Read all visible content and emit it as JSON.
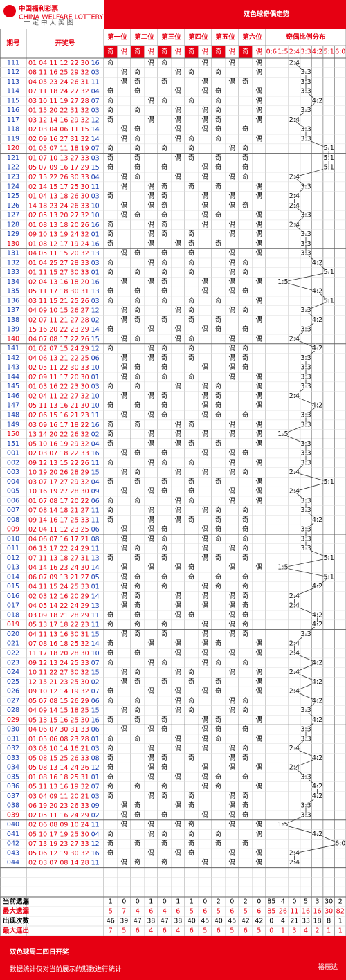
{
  "header": {
    "logo": "中国福利彩票",
    "logo_en": "CHINA WELFARE LOTTERY",
    "slogan": "一 定 中 大 奖 图",
    "title": "双色球奇偶走势"
  },
  "columns": {
    "period": "期号",
    "numbers": "开奖号",
    "positions": [
      "第一位",
      "第二位",
      "第三位",
      "第四位",
      "第五位",
      "第六位"
    ],
    "sub": [
      "奇",
      "偶"
    ],
    "ratio_title": "奇偶比例分布",
    "ratios": [
      "0:6",
      "1:5",
      "2:4",
      "3:3",
      "4:2",
      "5:1",
      "6:0"
    ]
  },
  "rows": [
    {
      "period": "111",
      "red": "01 04 11 12 22 30",
      "blue": "16",
      "parity": "奇偶奇偶偶偶",
      "ratio": "2:4"
    },
    {
      "period": "112",
      "red": "08 11 16 25 29 32",
      "blue": "03",
      "parity": "偶奇偶奇奇偶",
      "ratio": "3:3"
    },
    {
      "period": "113",
      "red": "04 05 23 24 26 31",
      "blue": "11",
      "parity": "偶奇奇偶偶奇",
      "ratio": "3:3"
    },
    {
      "period": "114",
      "red": "07 11 18 24 27 32",
      "blue": "04",
      "parity": "奇奇偶偶奇偶",
      "ratio": "3:3"
    },
    {
      "period": "115",
      "red": "03 10 11 19 27 28",
      "blue": "07",
      "parity": "奇偶奇奇奇偶",
      "ratio": "4:2"
    },
    {
      "period": "116",
      "red": "01 15 20 22 31 32",
      "blue": "03",
      "parity": "奇奇偶偶奇偶",
      "ratio": "3:3"
    },
    {
      "period": "117",
      "red": "03 12 14 16 29 32",
      "blue": "12",
      "parity": "奇偶偶偶奇偶",
      "ratio": "2:4"
    },
    {
      "period": "118",
      "red": "02 03 04 06 11 15",
      "blue": "14",
      "parity": "偶奇偶偶奇奇",
      "ratio": "3:3"
    },
    {
      "period": "119",
      "red": "02 09 16 27 31 32",
      "blue": "14",
      "parity": "偶奇偶奇奇偶",
      "ratio": "3:3"
    },
    {
      "period": "120",
      "red": "01 05 07 11 18 19",
      "blue": "07",
      "parity": "奇奇奇奇偶奇",
      "ratio": "5:1",
      "color": "#e60012"
    },
    {
      "period": "121",
      "red": "01 07 10 13 27 33",
      "blue": "03",
      "parity": "奇奇偶奇奇奇",
      "ratio": "5:1"
    },
    {
      "period": "122",
      "red": "05 07 09 16 17 29",
      "blue": "15",
      "parity": "奇奇奇偶奇奇",
      "ratio": "5:1"
    },
    {
      "period": "123",
      "red": "02 15 22 26 30 33",
      "blue": "04",
      "parity": "偶奇偶偶偶奇",
      "ratio": "2:4"
    },
    {
      "period": "124",
      "red": "02 14 15 17 25 30",
      "blue": "11",
      "parity": "偶偶奇奇奇偶",
      "ratio": "3:3"
    },
    {
      "period": "125",
      "red": "01 04 13 18 26 30",
      "blue": "03",
      "parity": "奇偶奇偶偶偶",
      "ratio": "2:4"
    },
    {
      "period": "126",
      "red": "14 18 23 24 26 33",
      "blue": "10",
      "parity": "偶偶奇偶偶奇",
      "ratio": "2:4"
    },
    {
      "period": "127",
      "red": "02 05 13 20 27 32",
      "blue": "10",
      "parity": "偶奇奇偶奇偶",
      "ratio": "3:3"
    },
    {
      "period": "128",
      "red": "01 08 13 18 20 26",
      "blue": "16",
      "parity": "奇偶奇偶偶偶",
      "ratio": "2:4"
    },
    {
      "period": "129",
      "red": "09 10 13 19 24 32",
      "blue": "01",
      "parity": "奇偶奇奇偶偶",
      "ratio": "3:3"
    },
    {
      "period": "130",
      "red": "01 08 12 17 19 24",
      "blue": "16",
      "parity": "奇偶偶奇奇偶",
      "ratio": "3:3",
      "color": "#e60012"
    },
    {
      "period": "131",
      "red": "04 05 11 15 20 32",
      "blue": "13",
      "parity": "偶奇奇奇偶偶",
      "ratio": "3:3"
    },
    {
      "period": "132",
      "red": "01 04 25 27 28 33",
      "blue": "03",
      "parity": "奇偶奇奇偶奇",
      "ratio": "4:2"
    },
    {
      "period": "133",
      "red": "01 11 15 27 30 33",
      "blue": "01",
      "parity": "奇奇奇奇偶奇",
      "ratio": "5:1"
    },
    {
      "period": "134",
      "red": "02 04 13 16 18 20",
      "blue": "16",
      "parity": "偶偶奇偶偶偶",
      "ratio": "1:5"
    },
    {
      "period": "135",
      "red": "05 11 17 18 30 31",
      "blue": "13",
      "parity": "奇奇奇偶偶奇",
      "ratio": "4:2"
    },
    {
      "period": "136",
      "red": "03 11 15 21 25 26",
      "blue": "03",
      "parity": "奇奇奇奇奇偶",
      "ratio": "5:1"
    },
    {
      "period": "137",
      "red": "04 09 10 15 26 27",
      "blue": "12",
      "parity": "偶奇偶奇偶奇",
      "ratio": "3:3"
    },
    {
      "period": "138",
      "red": "02 07 11 21 27 28",
      "blue": "02",
      "parity": "偶奇奇奇奇偶",
      "ratio": "4:2"
    },
    {
      "period": "139",
      "red": "15 16 20 22 23 29",
      "blue": "14",
      "parity": "奇偶偶偶奇奇",
      "ratio": "3:3"
    },
    {
      "period": "140",
      "red": "04 07 08 17 22 26",
      "blue": "15",
      "parity": "偶奇偶奇偶偶",
      "ratio": "2:4",
      "color": "#e60012"
    },
    {
      "period": "141",
      "red": "01 02 07 15 24 29",
      "blue": "12",
      "parity": "奇偶奇奇偶奇",
      "ratio": "4:2"
    },
    {
      "period": "142",
      "red": "04 06 13 21 22 25",
      "blue": "06",
      "parity": "偶偶奇奇偶奇",
      "ratio": "3:3"
    },
    {
      "period": "143",
      "red": "02 05 11 22 30 33",
      "blue": "10",
      "parity": "偶奇奇偶偶奇",
      "ratio": "3:3"
    },
    {
      "period": "144",
      "red": "02 09 11 17 20 30",
      "blue": "01",
      "parity": "偶奇奇奇偶偶",
      "ratio": "3:3"
    },
    {
      "period": "145",
      "red": "01 03 16 22 23 30",
      "blue": "03",
      "parity": "奇奇偶偶奇偶",
      "ratio": "3:3"
    },
    {
      "period": "146",
      "red": "02 04 11 22 27 32",
      "blue": "10",
      "parity": "偶偶奇偶奇偶",
      "ratio": "2:4"
    },
    {
      "period": "147",
      "red": "05 11 13 16 21 30",
      "blue": "10",
      "parity": "奇奇奇偶奇偶",
      "ratio": "4:2"
    },
    {
      "period": "148",
      "red": "02 06 15 16 21 23",
      "blue": "11",
      "parity": "偶偶奇偶奇奇",
      "ratio": "3:3"
    },
    {
      "period": "149",
      "red": "03 09 16 17 18 22",
      "blue": "16",
      "parity": "奇奇偶奇偶偶",
      "ratio": "3:3"
    },
    {
      "period": "150",
      "red": "13 14 20 22 26 32",
      "blue": "02",
      "parity": "奇偶偶偶偶偶",
      "ratio": "1:5",
      "color": "#e60012"
    },
    {
      "period": "151",
      "red": "05 10 16 19 29 32",
      "blue": "04",
      "parity": "奇偶偶奇奇偶",
      "ratio": "3:3"
    },
    {
      "period": "001",
      "red": "02 03 07 18 22 33",
      "blue": "16",
      "parity": "偶奇奇偶偶奇",
      "ratio": "3:3"
    },
    {
      "period": "002",
      "red": "09 12 13 15 22 26",
      "blue": "11",
      "parity": "奇偶奇奇偶偶",
      "ratio": "3:3"
    },
    {
      "period": "003",
      "red": "10 19 20 26 28 29",
      "blue": "15",
      "parity": "偶奇偶偶偶奇",
      "ratio": "2:4"
    },
    {
      "period": "004",
      "red": "03 07 17 27 29 32",
      "blue": "04",
      "parity": "奇奇奇奇奇偶",
      "ratio": "5:1"
    },
    {
      "period": "005",
      "red": "10 16 19 27 28 30",
      "blue": "09",
      "parity": "偶偶奇奇偶偶",
      "ratio": "2:4"
    },
    {
      "period": "006",
      "red": "01 07 08 17 20 22",
      "blue": "06",
      "parity": "奇奇偶奇偶偶",
      "ratio": "3:3"
    },
    {
      "period": "007",
      "red": "07 08 14 18 21 27",
      "blue": "11",
      "parity": "奇偶偶偶奇奇",
      "ratio": "3:3"
    },
    {
      "period": "008",
      "red": "09 14 16 17 25 33",
      "blue": "11",
      "parity": "奇偶偶奇奇奇",
      "ratio": "4:2"
    },
    {
      "period": "009",
      "red": "02 04 11 12 23 25",
      "blue": "06",
      "parity": "偶偶奇偶奇奇",
      "ratio": "3:3",
      "color": "#e60012"
    },
    {
      "period": "010",
      "red": "04 06 07 16 17 21",
      "blue": "08",
      "parity": "偶偶奇偶奇奇",
      "ratio": "3:3"
    },
    {
      "period": "011",
      "red": "06 13 17 22 24 29",
      "blue": "11",
      "parity": "偶奇奇偶偶奇",
      "ratio": "3:3"
    },
    {
      "period": "012",
      "red": "07 11 13 18 27 31",
      "blue": "13",
      "parity": "奇奇奇偶奇奇",
      "ratio": "5:1"
    },
    {
      "period": "013",
      "red": "04 14 16 23 24 30",
      "blue": "14",
      "parity": "偶偶偶奇偶偶",
      "ratio": "1:5"
    },
    {
      "period": "014",
      "red": "06 07 09 13 21 27",
      "blue": "05",
      "parity": "偶奇奇奇奇奇",
      "ratio": "5:1"
    },
    {
      "period": "015",
      "red": "04 11 15 24 25 33",
      "blue": "01",
      "parity": "偶奇奇偶奇奇",
      "ratio": "4:2"
    },
    {
      "period": "016",
      "red": "02 03 12 16 20 29",
      "blue": "14",
      "parity": "偶奇偶偶偶奇",
      "ratio": "2:4"
    },
    {
      "period": "017",
      "red": "04 05 14 22 24 29",
      "blue": "13",
      "parity": "偶奇偶偶偶奇",
      "ratio": "2:4"
    },
    {
      "period": "018",
      "red": "03 09 18 21 28 29",
      "blue": "11",
      "parity": "奇奇偶奇偶奇",
      "ratio": "4:2"
    },
    {
      "period": "019",
      "red": "05 13 17 18 22 23",
      "blue": "11",
      "parity": "奇奇奇偶偶奇",
      "ratio": "4:2",
      "color": "#e60012"
    },
    {
      "period": "020",
      "red": "04 11 13 16 30 31",
      "blue": "15",
      "parity": "偶奇奇偶偶奇",
      "ratio": "3:3"
    },
    {
      "period": "021",
      "red": "07 08 16 18 25 32",
      "blue": "14",
      "parity": "奇偶偶偶奇偶",
      "ratio": "2:4"
    },
    {
      "period": "022",
      "red": "11 17 18 20 28 30",
      "blue": "10",
      "parity": "奇奇偶偶偶偶",
      "ratio": "2:4"
    },
    {
      "period": "023",
      "red": "09 12 13 24 25 33",
      "blue": "07",
      "parity": "奇偶奇偶奇奇",
      "ratio": "4:2"
    },
    {
      "period": "024",
      "red": "10 11 22 27 30 32",
      "blue": "15",
      "parity": "偶奇偶奇偶偶",
      "ratio": "2:4"
    },
    {
      "period": "025",
      "red": "12 15 21 23 25 30",
      "blue": "02",
      "parity": "偶奇奇奇奇偶",
      "ratio": "4:2"
    },
    {
      "period": "026",
      "red": "09 10 12 14 19 32",
      "blue": "07",
      "parity": "奇偶偶偶奇偶",
      "ratio": "2:4"
    },
    {
      "period": "027",
      "red": "05 07 08 15 26 29",
      "blue": "06",
      "parity": "奇奇偶奇偶奇",
      "ratio": "4:2"
    },
    {
      "period": "028",
      "red": "04 09 14 15 18 25",
      "blue": "15",
      "parity": "偶奇偶奇偶奇",
      "ratio": "3:3"
    },
    {
      "period": "029",
      "red": "05 13 15 16 25 30",
      "blue": "16",
      "parity": "奇奇奇偶奇偶",
      "ratio": "4:2",
      "color": "#e60012"
    },
    {
      "period": "030",
      "red": "04 06 07 30 31 33",
      "blue": "06",
      "parity": "偶偶奇偶奇奇",
      "ratio": "3:3"
    },
    {
      "period": "031",
      "red": "01 05 06 08 23 28",
      "blue": "01",
      "parity": "奇奇偶偶奇偶",
      "ratio": "3:3"
    },
    {
      "period": "032",
      "red": "03 08 10 14 16 21",
      "blue": "03",
      "parity": "奇偶偶偶偶奇",
      "ratio": "2:4"
    },
    {
      "period": "033",
      "red": "05 08 15 25 26 33",
      "blue": "08",
      "parity": "奇偶奇奇偶奇",
      "ratio": "4:2"
    },
    {
      "period": "034",
      "red": "05 08 13 14 24 26",
      "blue": "12",
      "parity": "奇偶奇偶偶偶",
      "ratio": "2:4"
    },
    {
      "period": "035",
      "red": "01 08 16 18 25 31",
      "blue": "01",
      "parity": "奇偶偶偶奇奇",
      "ratio": "3:3"
    },
    {
      "period": "036",
      "red": "05 11 13 16 19 32",
      "blue": "07",
      "parity": "奇奇奇偶奇偶",
      "ratio": "4:2"
    },
    {
      "period": "037",
      "red": "03 04 09 11 20 21",
      "blue": "03",
      "parity": "奇偶奇奇偶奇",
      "ratio": "4:2"
    },
    {
      "period": "038",
      "red": "06 19 20 23 26 33",
      "blue": "09",
      "parity": "偶奇偶奇偶奇",
      "ratio": "3:3"
    },
    {
      "period": "039",
      "red": "02 05 11 16 24 29",
      "blue": "02",
      "parity": "偶奇奇偶偶奇",
      "ratio": "3:3",
      "color": "#e60012"
    },
    {
      "period": "040",
      "red": "02 06 08 09 10 24",
      "blue": "11",
      "parity": "偶偶偶奇偶偶",
      "ratio": "1:5"
    },
    {
      "period": "041",
      "red": "05 10 17 19 25 30",
      "blue": "04",
      "parity": "奇偶奇奇奇偶",
      "ratio": "4:2"
    },
    {
      "period": "042",
      "red": "07 13 19 23 27 33",
      "blue": "12",
      "parity": "奇奇奇奇奇奇",
      "ratio": "6:0"
    },
    {
      "period": "043",
      "red": "05 06 12 19 30 32",
      "blue": "16",
      "parity": "奇偶偶奇偶偶",
      "ratio": "2:4"
    },
    {
      "period": "044",
      "red": "02 03 07 08 14 28",
      "blue": "11",
      "parity": "偶奇奇偶偶偶",
      "ratio": "2:4"
    }
  ],
  "stats": [
    {
      "label": "当前遗漏",
      "color": "#000000",
      "values": [
        1,
        0,
        0,
        1,
        0,
        1,
        1,
        0,
        2,
        0,
        2,
        0,
        85,
        4,
        0,
        5,
        3,
        30,
        2
      ]
    },
    {
      "label": "最大遗漏",
      "color": "#e60012",
      "values": [
        5,
        7,
        4,
        6,
        4,
        6,
        5,
        6,
        5,
        6,
        5,
        6,
        85,
        26,
        11,
        16,
        16,
        30,
        82
      ]
    },
    {
      "label": "出现次数",
      "color": "#000000",
      "values": [
        46,
        39,
        47,
        38,
        47,
        38,
        40,
        45,
        40,
        45,
        42,
        42,
        0,
        4,
        21,
        33,
        18,
        8,
        1
      ]
    },
    {
      "label": "最大连出",
      "color": "#e60012",
      "values": [
        7,
        5,
        6,
        4,
        6,
        4,
        6,
        5,
        6,
        5,
        6,
        5,
        0,
        1,
        3,
        4,
        2,
        1,
        1
      ]
    }
  ],
  "footer": {
    "title": "双色球周二四日开奖",
    "note": "数据统计仅对当前展示的期数进行统计",
    "brand": "裕辰达"
  }
}
